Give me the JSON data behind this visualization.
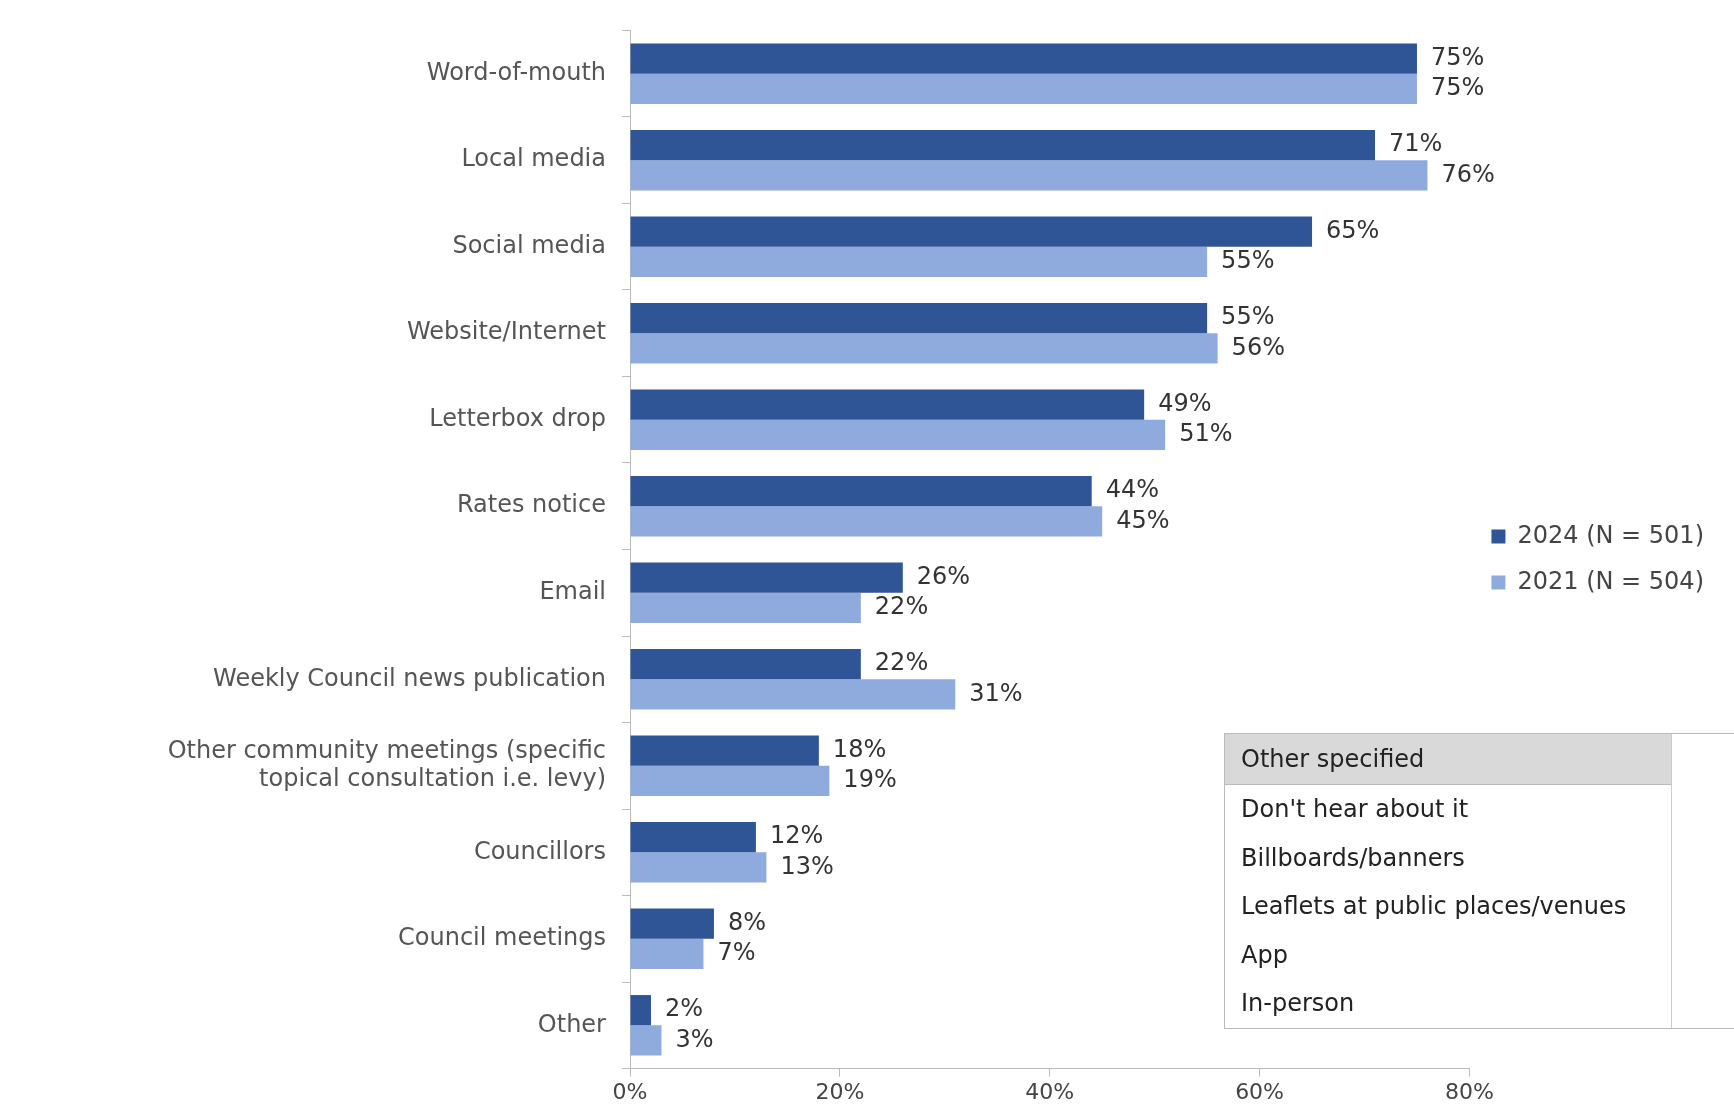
{
  "chart_data": {
    "type": "bar",
    "orientation": "horizontal",
    "categories": [
      "Word-of-mouth",
      "Local media",
      "Social media",
      "Website/Internet",
      "Letterbox drop",
      "Rates notice",
      "Email",
      "Weekly Council news publication",
      "Other community meetings (specific topical consultation i.e. levy)",
      "Councillors",
      "Council meetings",
      "Other"
    ],
    "series": [
      {
        "name": "2024 (N = 501)",
        "color": "#2f5597",
        "values": [
          75,
          71,
          65,
          55,
          49,
          44,
          26,
          22,
          18,
          12,
          8,
          2
        ],
        "value_labels": [
          "75%",
          "71%",
          "65%",
          "55%",
          "49%",
          "44%",
          "26%",
          "22%",
          "18%",
          "12%",
          "8%",
          "2%"
        ]
      },
      {
        "name": "2021 (N = 504)",
        "color": "#8faadc",
        "values": [
          75,
          76,
          55,
          56,
          51,
          45,
          22,
          31,
          19,
          13,
          7,
          3
        ],
        "value_labels": [
          "75%",
          "76%",
          "55%",
          "56%",
          "51%",
          "45%",
          "22%",
          "31%",
          "19%",
          "13%",
          "7%",
          "3%"
        ]
      }
    ],
    "xlim": [
      0,
      80
    ],
    "xticks": [
      {
        "value": 0,
        "label": "0%"
      },
      {
        "value": 20,
        "label": "20%"
      },
      {
        "value": 40,
        "label": "40%"
      },
      {
        "value": 60,
        "label": "60%"
      },
      {
        "value": 80,
        "label": "80%"
      }
    ],
    "legend": "right",
    "grid": false,
    "annotations": [
      "Other specified",
      "Don't hear about it",
      "Billboards/banners",
      "Leaflets at public places/venues",
      "App",
      "In-person"
    ]
  }
}
